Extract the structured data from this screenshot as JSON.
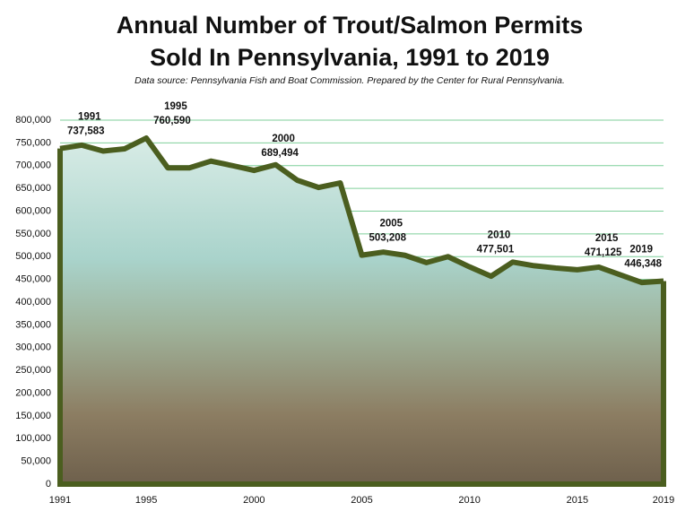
{
  "chart_data": {
    "type": "area",
    "title": [
      "Annual Number of Trout/Salmon Permits",
      "Sold In Pennsylvania, 1991 to 2019"
    ],
    "subtitle": "Data source: Pennsylvania Fish and Boat Commission. Prepared by the Center for Rural Pennsylvania.",
    "x": [
      1991,
      1992,
      1993,
      1994,
      1995,
      1996,
      1997,
      1998,
      1999,
      2000,
      2001,
      2002,
      2003,
      2004,
      2005,
      2006,
      2007,
      2008,
      2009,
      2010,
      2011,
      2012,
      2013,
      2014,
      2015,
      2016,
      2017,
      2018,
      2019
    ],
    "values": [
      737583,
      745000,
      732000,
      737000,
      760590,
      695000,
      695000,
      710000,
      700000,
      689494,
      702000,
      668000,
      652000,
      662000,
      503208,
      510000,
      503000,
      487000,
      500000,
      477501,
      457000,
      488000,
      480000,
      475000,
      471125,
      477000,
      460000,
      443000,
      446348
    ],
    "value_labels": [
      "737,583",
      null,
      null,
      null,
      "760,590",
      null,
      null,
      null,
      null,
      "689,494",
      null,
      null,
      null,
      null,
      "503,208",
      null,
      null,
      null,
      null,
      "477,501",
      null,
      null,
      null,
      null,
      "471,125",
      null,
      null,
      null,
      "446,348"
    ],
    "color": "#4b5e1f",
    "xlim": [
      1991,
      2019
    ],
    "xticks": [
      1991,
      1995,
      2000,
      2005,
      2010,
      2015,
      2019
    ],
    "ylim": [
      0,
      800000
    ],
    "yticks": [
      0,
      {
        "value": 50000,
        "label": "50,000"
      },
      {
        "value": 100000,
        "label": "100,000"
      },
      {
        "value": 150000,
        "label": "150,000"
      },
      {
        "value": 200000,
        "label": "200,000"
      },
      {
        "value": 250000,
        "label": "250,000"
      },
      {
        "value": 300000,
        "label": "300,000"
      },
      {
        "value": 350000,
        "label": "350,000"
      },
      {
        "value": 400000,
        "label": "400,000"
      },
      {
        "value": 450000,
        "label": "450,000"
      },
      {
        "value": 500000,
        "label": "500,000"
      },
      {
        "value": 550000,
        "label": "550,000"
      },
      {
        "value": 600000,
        "label": "600,000"
      },
      {
        "value": 650000,
        "label": "650,000"
      },
      {
        "value": 700000,
        "label": "700,000"
      },
      {
        "value": 750000,
        "label": "750,000"
      },
      {
        "value": 800000,
        "label": "800,000"
      }
    ],
    "grid": true,
    "grid_color": "#7fcf9a"
  }
}
